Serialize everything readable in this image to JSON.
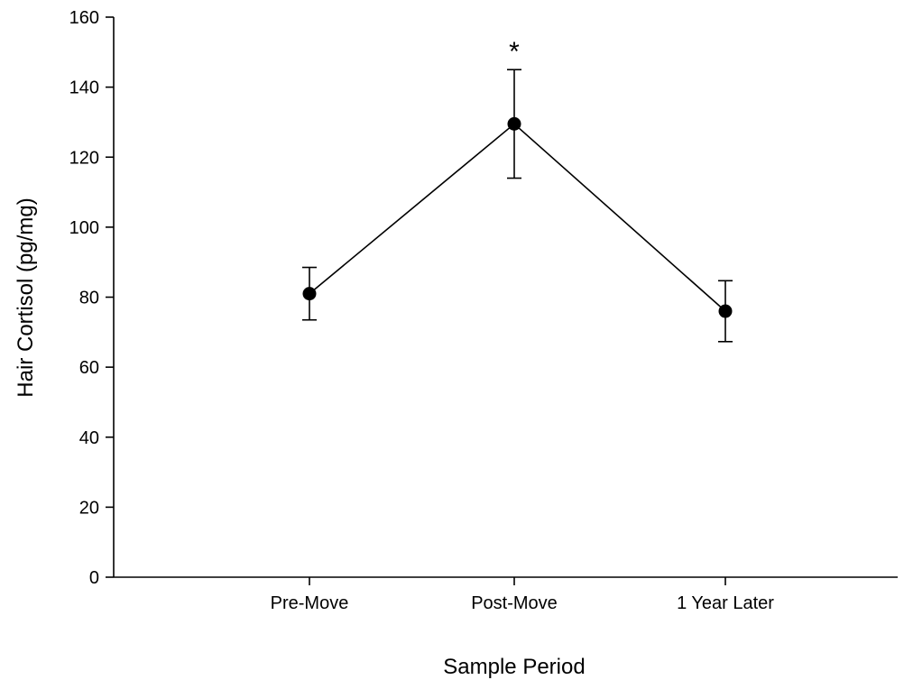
{
  "chart_data": {
    "type": "line",
    "title": "",
    "xlabel": "Sample Period",
    "ylabel": "Hair Cortisol (pg/mg)",
    "categories": [
      "Pre-Move",
      "Post-Move",
      "1 Year Later"
    ],
    "series": [
      {
        "values": [
          81,
          129.5,
          76
        ],
        "error": [
          7.5,
          15.5,
          8.7
        ],
        "color": "#000000"
      }
    ],
    "ylim": [
      0,
      160
    ],
    "yticks": [
      0,
      20,
      40,
      60,
      80,
      100,
      120,
      140,
      160
    ],
    "yticklabels": [
      "0",
      "20",
      "40",
      "60",
      "80",
      "100",
      "120",
      "140",
      "160"
    ],
    "grid": false,
    "legend": "none",
    "annotations": [
      {
        "text": "*",
        "category": "Post-Move"
      }
    ]
  }
}
